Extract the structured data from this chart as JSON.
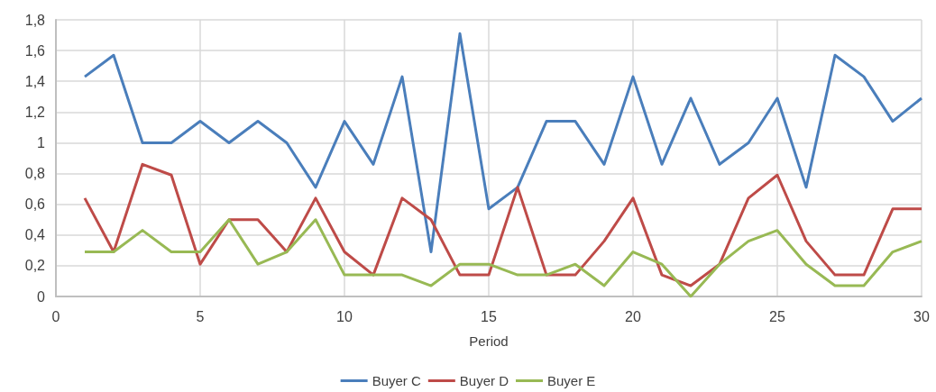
{
  "chart_data": {
    "type": "line",
    "xlabel": "Period",
    "x": [
      1,
      2,
      3,
      4,
      5,
      6,
      7,
      8,
      9,
      10,
      11,
      12,
      13,
      14,
      15,
      16,
      17,
      18,
      19,
      20,
      21,
      22,
      23,
      24,
      25,
      26,
      27,
      28,
      29,
      30
    ],
    "series": [
      {
        "name": "Buyer C",
        "color": "#4a7ebb",
        "values": [
          1.43,
          1.57,
          1.0,
          1.0,
          1.14,
          1.0,
          1.14,
          1.0,
          0.71,
          1.14,
          0.86,
          1.43,
          0.29,
          1.71,
          0.57,
          0.71,
          1.14,
          1.14,
          0.86,
          1.43,
          0.86,
          1.29,
          0.86,
          1.0,
          1.29,
          0.71,
          1.57,
          1.43,
          1.14,
          1.29
        ]
      },
      {
        "name": "Buyer D",
        "color": "#be4b48",
        "values": [
          0.64,
          0.29,
          0.86,
          0.79,
          0.21,
          0.5,
          0.5,
          0.29,
          0.64,
          0.29,
          0.14,
          0.64,
          0.5,
          0.14,
          0.14,
          0.71,
          0.14,
          0.14,
          0.36,
          0.64,
          0.14,
          0.07,
          0.21,
          0.64,
          0.79,
          0.36,
          0.14,
          0.14,
          0.57,
          0.57
        ]
      },
      {
        "name": "Buyer E",
        "color": "#98b954",
        "values": [
          0.29,
          0.29,
          0.43,
          0.29,
          0.29,
          0.5,
          0.21,
          0.29,
          0.5,
          0.14,
          0.14,
          0.14,
          0.07,
          0.21,
          0.21,
          0.14,
          0.14,
          0.21,
          0.07,
          0.29,
          0.21,
          0,
          0.21,
          0.36,
          0.43,
          0.21,
          0.07,
          0.07,
          0.29,
          0.36
        ]
      }
    ],
    "xlim": [
      0,
      30
    ],
    "xticks": [
      0,
      5,
      10,
      15,
      20,
      25,
      30
    ],
    "ylim": [
      0,
      1.8
    ],
    "yticks": [
      0,
      {
        "value": 0.2,
        "label": "0,2"
      },
      {
        "value": 0.4,
        "label": "0,4"
      },
      {
        "value": 0.6,
        "label": "0,6"
      },
      {
        "value": 0.8,
        "label": "0,8"
      },
      1,
      {
        "value": 1.2,
        "label": "1,2"
      },
      {
        "value": 1.4,
        "label": "1,4"
      },
      {
        "value": 1.6,
        "label": "1,6"
      },
      {
        "value": 1.8,
        "label": "1,8"
      }
    ],
    "grid": true,
    "legend": "bottom",
    "marker": "none",
    "line_style": "solid"
  }
}
